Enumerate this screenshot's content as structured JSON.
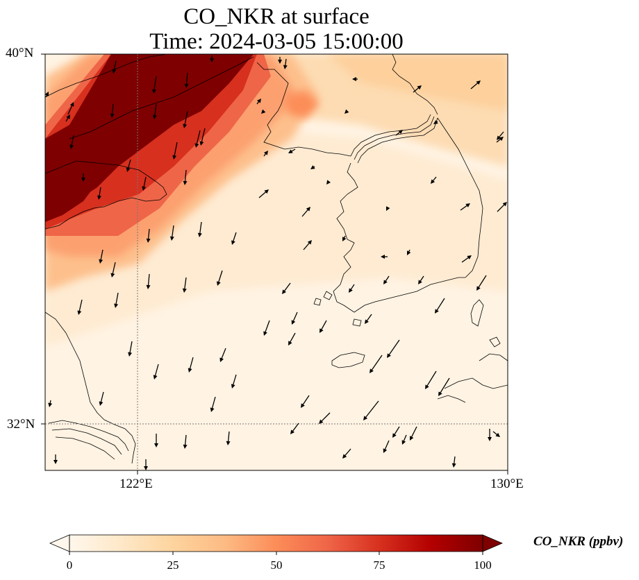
{
  "title_line1": "CO_NKR at surface",
  "title_line2": "Time: 2024-03-05 15:00:00",
  "axes": {
    "lat_labels": [
      "40°N",
      "32°N"
    ],
    "lon_labels": [
      "122°E",
      "130°E"
    ]
  },
  "map": {
    "extent_lon": [
      120,
      130
    ],
    "extent_lat": [
      31,
      40
    ],
    "gridlines_lon": [
      122
    ],
    "gridlines_lat": [
      32
    ],
    "field": "CO_NKR",
    "level": "surface",
    "high_concentration_band": "northwest, from Shandong/Bohai region toward southwest",
    "wind_vectors": "predominantly northerly to northeasterly flow"
  },
  "colorbar": {
    "label": "CO_NKR (ppbv)",
    "min": 0,
    "max": 100,
    "ticks": [
      "0",
      "25",
      "50",
      "75",
      "100"
    ],
    "extend": "both",
    "colormap": "OrRd",
    "colors": [
      "#fff7ec",
      "#fee8c8",
      "#fdd49e",
      "#fdbb84",
      "#fc8d59",
      "#ef6548",
      "#d7301f",
      "#b30000",
      "#7f0000"
    ]
  }
}
